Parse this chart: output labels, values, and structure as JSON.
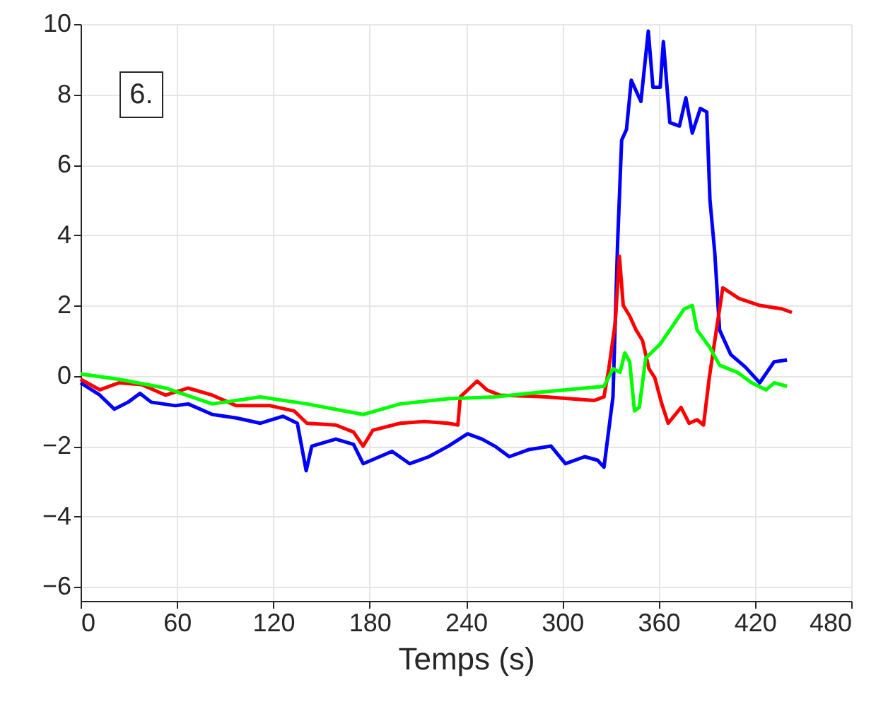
{
  "chart_data": {
    "type": "line",
    "xlabel": "Temps (s)",
    "annotations": [
      "6."
    ],
    "xlim": [
      0,
      480
    ],
    "xticks": [
      0,
      60,
      120,
      180,
      240,
      300,
      360,
      420,
      480
    ],
    "ylim": [
      -6.4,
      10
    ],
    "yticks": [
      -6,
      -4,
      -2,
      0,
      2,
      4,
      6,
      8,
      10
    ],
    "grid": true,
    "line_style": "solid",
    "series": [
      {
        "color": "#0000ff",
        "x": [
          0,
          12,
          21,
          29.6,
          37,
          44,
          59,
          67,
          82,
          97,
          112,
          126,
          135,
          140.5,
          144,
          159,
          170,
          176,
          194,
          205,
          217,
          229,
          241,
          250,
          258,
          267,
          279,
          293,
          302,
          314,
          322,
          326,
          331.6,
          334.5,
          337,
          340,
          343,
          349,
          353.6,
          356.5,
          361,
          363,
          367,
          373,
          377,
          381,
          386,
          390,
          392,
          395,
          398,
          405,
          414,
          423,
          432,
          440
        ],
        "values": [
          -0.2,
          -0.55,
          -0.95,
          -0.75,
          -0.5,
          -0.75,
          -0.85,
          -0.8,
          -1.1,
          -1.2,
          -1.35,
          -1.15,
          -1.35,
          -2.7,
          -2.0,
          -1.8,
          -1.95,
          -2.5,
          -2.15,
          -2.5,
          -2.3,
          -2.0,
          -1.65,
          -1.8,
          -2.0,
          -2.3,
          -2.1,
          -2.0,
          -2.5,
          -2.3,
          -2.4,
          -2.6,
          -0.6,
          3.8,
          6.7,
          7.0,
          8.4,
          7.8,
          9.8,
          8.2,
          8.2,
          9.5,
          7.2,
          7.1,
          7.9,
          6.9,
          7.6,
          7.5,
          5.0,
          3.5,
          1.3,
          0.6,
          0.25,
          -0.2,
          0.4,
          0.45
        ]
      },
      {
        "color": "#ff0000",
        "x": [
          0,
          12,
          24,
          38,
          53,
          67,
          82,
          97,
          118,
          133,
          141,
          159,
          170,
          176,
          182,
          199,
          214,
          229,
          235,
          236.5,
          247,
          253,
          261,
          290,
          320,
          326,
          329,
          333,
          335.6,
          338,
          342,
          346,
          350,
          354,
          357.6,
          362,
          366,
          374,
          379,
          384,
          388,
          391.6,
          396,
          400,
          410,
          423,
          437,
          443
        ],
        "values": [
          -0.1,
          -0.4,
          -0.2,
          -0.25,
          -0.55,
          -0.35,
          -0.55,
          -0.85,
          -0.85,
          -1.0,
          -1.35,
          -1.4,
          -1.6,
          -2.0,
          -1.55,
          -1.35,
          -1.3,
          -1.35,
          -1.4,
          -0.6,
          -0.15,
          -0.4,
          -0.55,
          -0.6,
          -0.7,
          -0.6,
          0.2,
          1.5,
          3.4,
          2.0,
          1.7,
          1.3,
          1.0,
          0.2,
          -0.05,
          -0.8,
          -1.35,
          -0.9,
          -1.35,
          -1.25,
          -1.4,
          -0.05,
          1.3,
          2.5,
          2.2,
          2.0,
          1.9,
          1.8
        ]
      },
      {
        "color": "#00ff00",
        "x": [
          0,
          23.6,
          53,
          82,
          112,
          141,
          176,
          199,
          229,
          258,
          290,
          326,
          331.6,
          336,
          339,
          342,
          345,
          348,
          352,
          361,
          370,
          376,
          381,
          384,
          392,
          398,
          409,
          418,
          427,
          432,
          440
        ],
        "values": [
          0.05,
          -0.1,
          -0.35,
          -0.8,
          -0.6,
          -0.8,
          -1.1,
          -0.8,
          -0.65,
          -0.6,
          -0.45,
          -0.3,
          0.2,
          0.1,
          0.65,
          0.4,
          -1.0,
          -0.9,
          0.5,
          0.9,
          1.5,
          1.9,
          2.0,
          1.3,
          0.8,
          0.3,
          0.1,
          -0.2,
          -0.4,
          -0.2,
          -0.3
        ]
      }
    ]
  }
}
